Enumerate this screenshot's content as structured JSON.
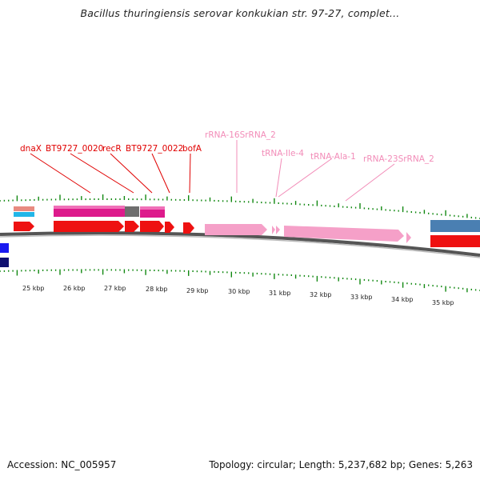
{
  "title": "Bacillus thuringiensis serovar konkukian str. 97-27, complet...",
  "footer": {
    "accession": "Accession: NC_005957",
    "summary": "Topology: circular; Length: 5,237,682 bp; Genes: 5,263"
  },
  "colors": {
    "gene_label": "#e00000",
    "rna_label": "#f28cb8",
    "gene": "#ee1111",
    "rna": "#f5a0c8",
    "cds_block": "#dd1a8c",
    "gap_block": "#707070",
    "tick": "#118811",
    "backbone": "#777777"
  },
  "scale_labels": [
    "25 kbp",
    "26 kbp",
    "27 kbp",
    "28 kbp",
    "29 kbp",
    "30 kbp",
    "31 kbp",
    "32 kbp",
    "33 kbp",
    "34 kbp",
    "35 kbp"
  ],
  "gene_labels": [
    "dnaX",
    "BT9727_0020",
    "recR",
    "BT9727_0022",
    "bofA"
  ],
  "rna_labels": [
    "rRNA-16SrRNA_2",
    "tRNA-Ile-4",
    "tRNA-Ala-1",
    "rRNA-23SrRNA_2"
  ]
}
